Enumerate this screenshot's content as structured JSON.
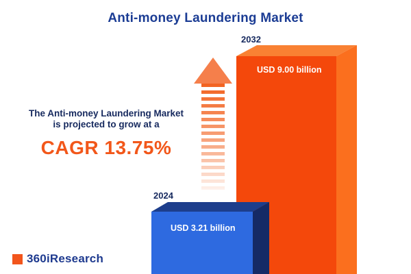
{
  "header": {
    "title": "Anti-money Laundering Market"
  },
  "annotation": {
    "line1": "The Anti-money Laundering Market",
    "line2": "is projected to grow at a",
    "cagr": "CAGR 13.75%"
  },
  "bars": [
    {
      "year": "2024",
      "value_label": "USD 3.21 billion",
      "color": "#2e6ae0"
    },
    {
      "year": "2032",
      "value_label": "USD 9.00 billion",
      "color": "#f4480b"
    }
  ],
  "logo": {
    "text": "360iResearch",
    "square_color": "#f2551c"
  },
  "colors": {
    "title_navy": "#1b3c94",
    "text_navy": "#16295e",
    "accent_orange": "#f2571a",
    "bar_blue_front": "#2e6ae0",
    "bar_blue_side": "#152a66",
    "bar_orange_front": "#f4480b",
    "bar_orange_side": "#fb6f1e",
    "background": "#ffffff"
  },
  "chart_data": {
    "type": "bar",
    "title": "Anti-money Laundering Market",
    "categories": [
      "2024",
      "2032"
    ],
    "values": [
      3.21,
      9.0
    ],
    "unit": "USD billion",
    "value_labels": [
      "USD 3.21 billion",
      "USD 9.00 billion"
    ],
    "cagr_percent": 13.75,
    "annotations": [
      "The Anti-money Laundering Market is projected to grow at a CAGR 13.75%"
    ],
    "legend_position": "none",
    "grid": false,
    "orientation": "vertical",
    "style": "3d-prism-bars with upward growth arrow"
  }
}
